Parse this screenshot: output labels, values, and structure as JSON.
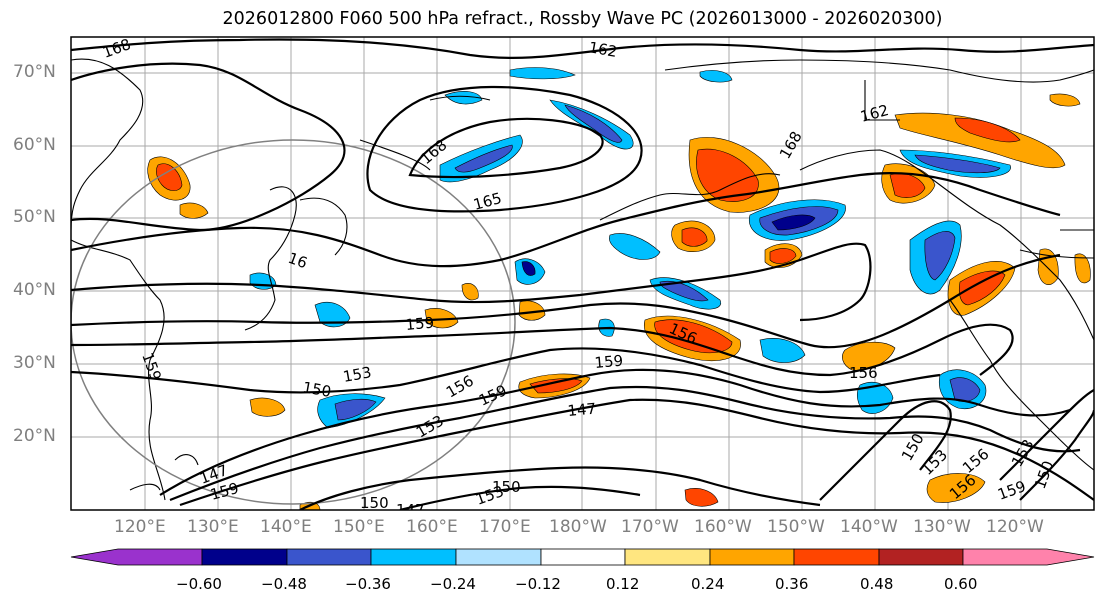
{
  "title": "2026012800 F060 500 hPa refract., Rossby Wave PC (2026013000 - 2026020300)",
  "map": {
    "lat_labels": [
      "70°N",
      "60°N",
      "50°N",
      "40°N",
      "30°N",
      "20°N"
    ],
    "lon_labels": [
      "120°E",
      "130°E",
      "140°E",
      "150°E",
      "160°E",
      "170°E",
      "180°W",
      "170°W",
      "160°W",
      "150°W",
      "140°W",
      "130°W",
      "120°W"
    ],
    "contour_labels": [
      "168",
      "162",
      "162",
      "165",
      "168",
      "168",
      "16",
      "159",
      "156",
      "153",
      "150",
      "159",
      "156",
      "159",
      "147",
      "147",
      "153",
      "159",
      "150",
      "147",
      "153",
      "150",
      "156",
      "150",
      "153",
      "156",
      "153",
      "150",
      "159",
      "156",
      "159"
    ]
  },
  "colorbar": {
    "ticks": [
      "−0.60",
      "−0.48",
      "−0.36",
      "−0.24",
      "−0.12",
      "0.12",
      "0.24",
      "0.36",
      "0.48",
      "0.60"
    ],
    "colors": [
      "#9a32cd",
      "#00008b",
      "#3a55cc",
      "#00bfff",
      "#b0e2ff",
      "#ffffff",
      "#ffe680",
      "#ffa500",
      "#ff4500",
      "#b22222",
      "#ff82ab"
    ]
  }
}
